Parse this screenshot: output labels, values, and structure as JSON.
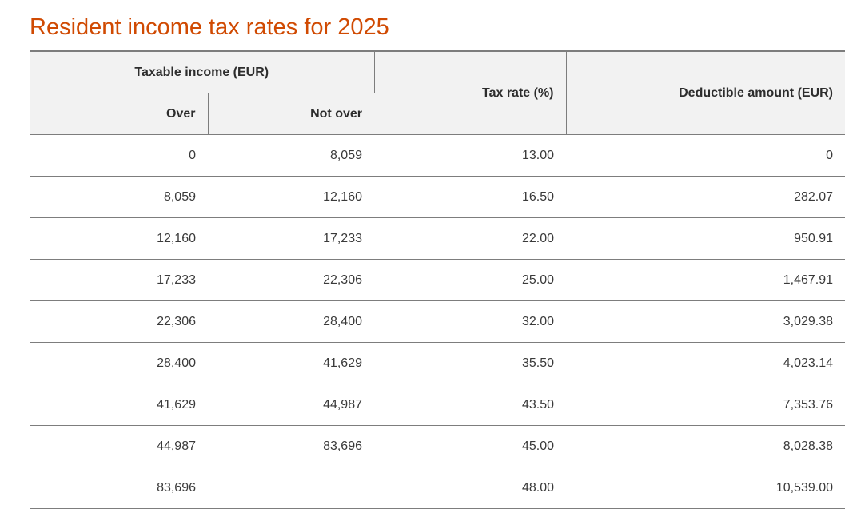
{
  "title": "Resident income tax rates for 2025",
  "table": {
    "group_header": "Taxable income (EUR)",
    "headers": {
      "over": "Over",
      "not_over": "Not over",
      "tax_rate": "Tax rate (%)",
      "deductible": "Deductible amount (EUR)"
    },
    "rows": [
      {
        "over": "0",
        "not_over": "8,059",
        "rate": "13.00",
        "deductible": "0"
      },
      {
        "over": "8,059",
        "not_over": "12,160",
        "rate": "16.50",
        "deductible": "282.07"
      },
      {
        "over": "12,160",
        "not_over": "17,233",
        "rate": "22.00",
        "deductible": "950.91"
      },
      {
        "over": "17,233",
        "not_over": "22,306",
        "rate": "25.00",
        "deductible": "1,467.91"
      },
      {
        "over": "22,306",
        "not_over": "28,400",
        "rate": "32.00",
        "deductible": "3,029.38"
      },
      {
        "over": "28,400",
        "not_over": "41,629",
        "rate": "35.50",
        "deductible": "4,023.14"
      },
      {
        "over": "41,629",
        "not_over": "44,987",
        "rate": "43.50",
        "deductible": "7,353.76"
      },
      {
        "over": "44,987",
        "not_over": "83,696",
        "rate": "45.00",
        "deductible": "8,028.38"
      },
      {
        "over": "83,696",
        "not_over": "",
        "rate": "48.00",
        "deductible": "10,539.00"
      }
    ]
  },
  "colors": {
    "title": "#d04a02",
    "header_background": "#f2f2f2",
    "rule": "#7d7d7d",
    "text": "#2d2d2d"
  }
}
